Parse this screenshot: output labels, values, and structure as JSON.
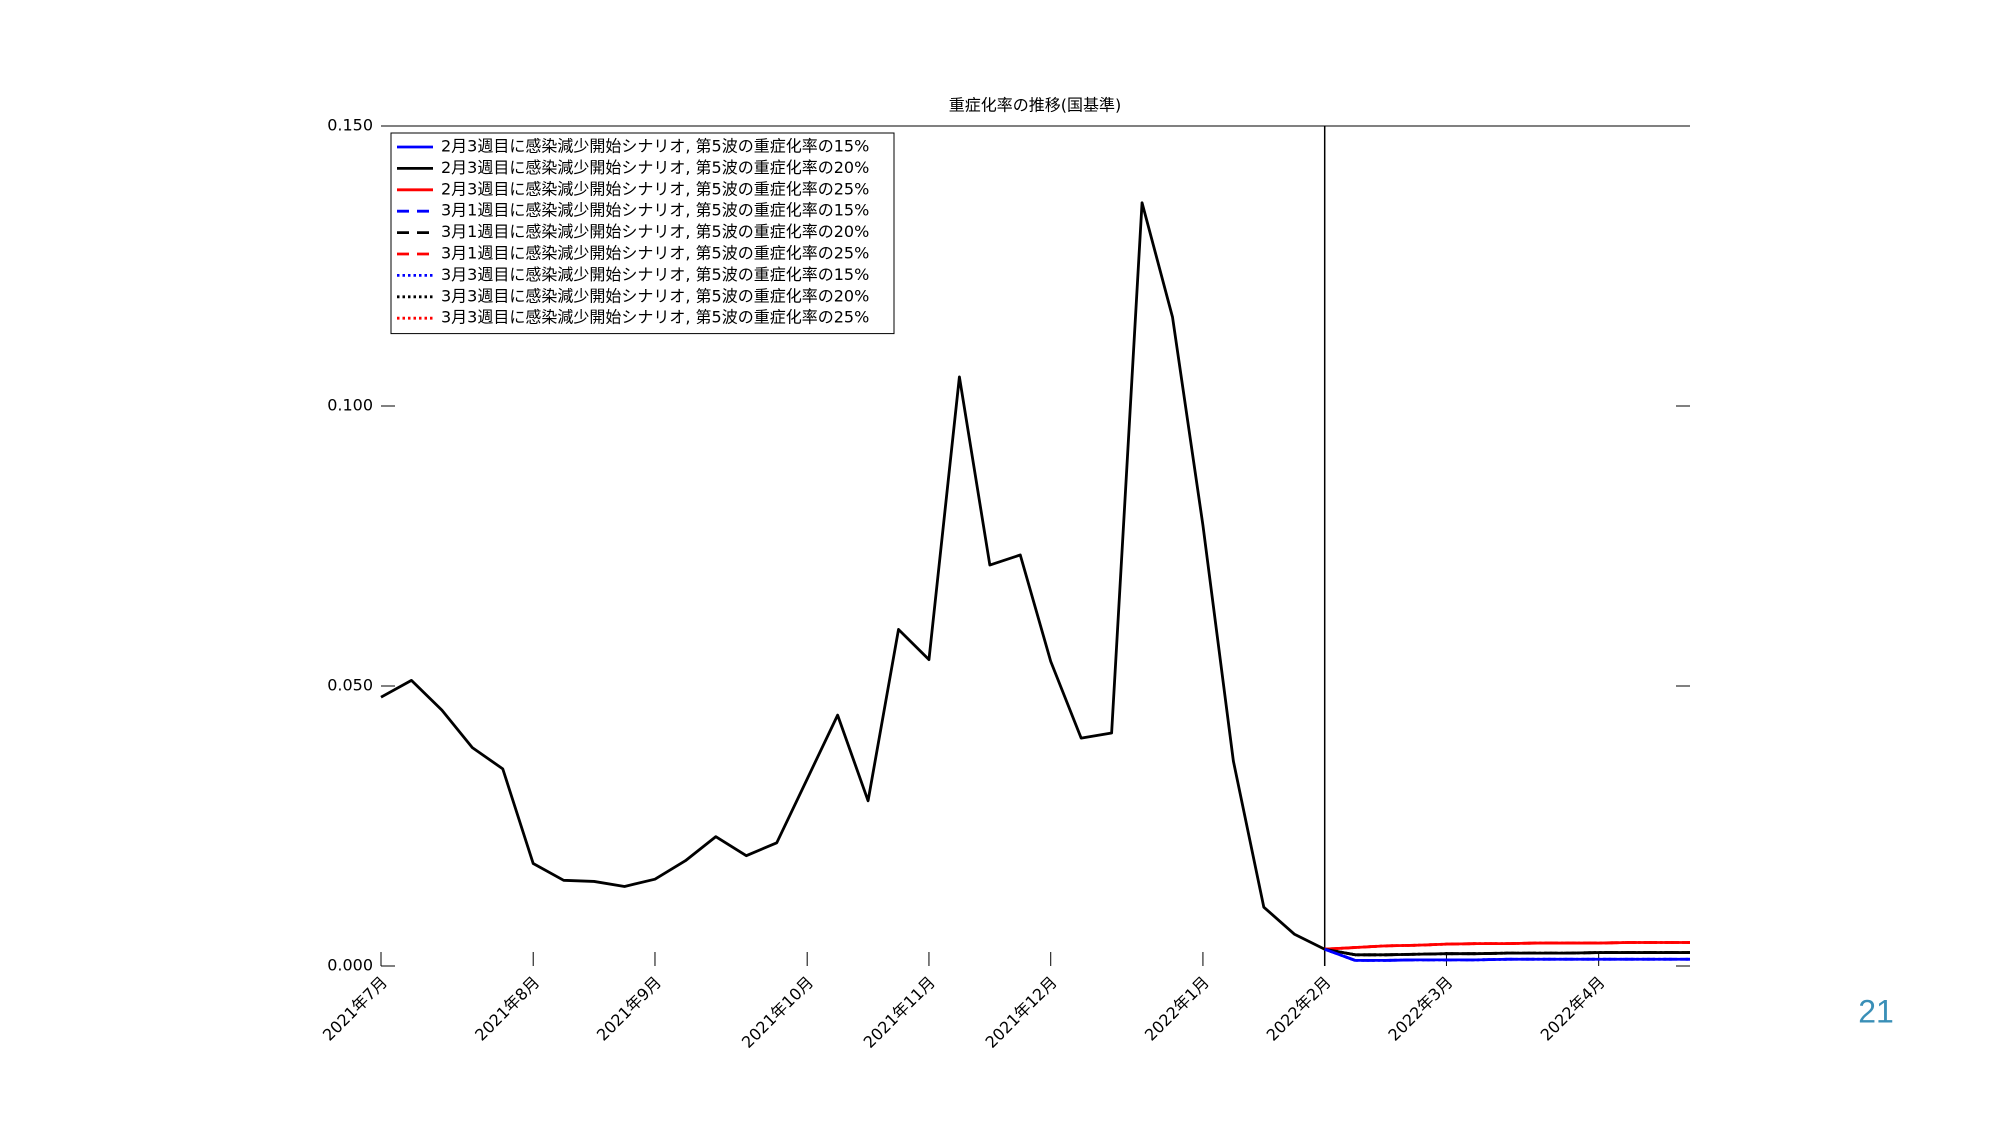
{
  "page_number": "21",
  "chart_data": {
    "type": "line",
    "title": "重症化率の推移(国基準)",
    "x": [
      0,
      1,
      2,
      3,
      4,
      5,
      6,
      7,
      8,
      9,
      10,
      11,
      12,
      13,
      14,
      15,
      16,
      17,
      18,
      19,
      20,
      21,
      22,
      23,
      24,
      25,
      26,
      27,
      28,
      29,
      30,
      31,
      32,
      33,
      34,
      35,
      36,
      37,
      38,
      39,
      40,
      41,
      42,
      43
    ],
    "xlim": [
      0,
      43
    ],
    "xticks": [
      {
        "value": 0,
        "label": "2021年7月"
      },
      {
        "value": 5,
        "label": "2021年8月"
      },
      {
        "value": 9,
        "label": "2021年9月"
      },
      {
        "value": 14,
        "label": "2021年10月"
      },
      {
        "value": 18,
        "label": "2021年11月"
      },
      {
        "value": 22,
        "label": "2021年12月"
      },
      {
        "value": 27,
        "label": "2022年1月"
      },
      {
        "value": 31,
        "label": "2022年2月"
      },
      {
        "value": 35,
        "label": "2022年3月"
      },
      {
        "value": 40,
        "label": "2022年4月"
      }
    ],
    "ylim": [
      0,
      0.15
    ],
    "yticks": [
      {
        "value": 0,
        "label": "0.000"
      },
      {
        "value": 0.05,
        "label": "0.050"
      },
      {
        "value": 0.1,
        "label": "0.100"
      },
      {
        "value": 0.15,
        "label": "0.150"
      }
    ],
    "vline": 31,
    "legend": "upper left",
    "series": [
      {
        "color": "#000000",
        "linestyle": "solid",
        "values": [
          0.048,
          0.051,
          0.0457,
          0.039,
          0.0352,
          0.0183,
          0.0153,
          0.0151,
          0.0142,
          0.0155,
          0.0188,
          0.0231,
          0.0197,
          0.022,
          0.0334,
          0.0448,
          0.0295,
          0.0601,
          0.0547,
          0.1052,
          0.0716,
          0.0734,
          0.0544,
          0.0407,
          0.0416,
          0.1363,
          0.1159,
          0.0787,
          0.0366,
          0.0105,
          0.0057,
          0.003,
          null,
          null,
          null,
          null,
          null,
          null,
          null,
          null,
          null,
          null,
          null,
          null
        ]
      },
      {
        "name": "3月3週目に感染減少開始シナリオ, 第5波の重症化率の25%",
        "color": "#ff0000",
        "linestyle": "dotted",
        "values": [
          null,
          null,
          null,
          null,
          null,
          null,
          null,
          null,
          null,
          null,
          null,
          null,
          null,
          null,
          null,
          null,
          null,
          null,
          null,
          null,
          null,
          null,
          null,
          null,
          null,
          null,
          null,
          null,
          null,
          null,
          null,
          0.003,
          0.0033,
          0.0036,
          0.0037,
          0.0039,
          0.004,
          0.004,
          0.0041,
          0.0041,
          0.0041,
          0.0042,
          0.0042,
          0.0042
        ]
      },
      {
        "name": "3月3週目に感染減少開始シナリオ, 第5波の重症化率の20%",
        "color": "#000000",
        "linestyle": "dotted",
        "values": [
          null,
          null,
          null,
          null,
          null,
          null,
          null,
          null,
          null,
          null,
          null,
          null,
          null,
          null,
          null,
          null,
          null,
          null,
          null,
          null,
          null,
          null,
          null,
          null,
          null,
          null,
          null,
          null,
          null,
          null,
          null,
          0.003,
          0.002,
          0.002,
          0.0021,
          0.0022,
          0.0022,
          0.0023,
          0.0023,
          0.0023,
          0.0024,
          0.0024,
          0.0024,
          0.0024
        ]
      },
      {
        "name": "3月3週目に感染減少開始シナリオ, 第5波の重症化率の15%",
        "color": "#0000ff",
        "linestyle": "dotted",
        "values": [
          null,
          null,
          null,
          null,
          null,
          null,
          null,
          null,
          null,
          null,
          null,
          null,
          null,
          null,
          null,
          null,
          null,
          null,
          null,
          null,
          null,
          null,
          null,
          null,
          null,
          null,
          null,
          null,
          null,
          null,
          null,
          0.003,
          0.001,
          0.001,
          0.0011,
          0.0011,
          0.0011,
          0.0012,
          0.0012,
          0.0012,
          0.0012,
          0.0012,
          0.0012,
          0.0012
        ]
      },
      {
        "name": "3月1週目に感染減少開始シナリオ, 第5波の重症化率の25%",
        "color": "#ff0000",
        "linestyle": "dashed",
        "values": [
          null,
          null,
          null,
          null,
          null,
          null,
          null,
          null,
          null,
          null,
          null,
          null,
          null,
          null,
          null,
          null,
          null,
          null,
          null,
          null,
          null,
          null,
          null,
          null,
          null,
          null,
          null,
          null,
          null,
          null,
          null,
          0.003,
          0.0033,
          0.0036,
          0.0037,
          0.0039,
          0.004,
          0.004,
          0.0041,
          0.0041,
          0.0041,
          0.0042,
          0.0042,
          0.0042
        ]
      },
      {
        "name": "3月1週目に感染減少開始シナリオ, 第5波の重症化率の20%",
        "color": "#000000",
        "linestyle": "dashed",
        "values": [
          null,
          null,
          null,
          null,
          null,
          null,
          null,
          null,
          null,
          null,
          null,
          null,
          null,
          null,
          null,
          null,
          null,
          null,
          null,
          null,
          null,
          null,
          null,
          null,
          null,
          null,
          null,
          null,
          null,
          null,
          null,
          0.003,
          0.002,
          0.002,
          0.0021,
          0.0022,
          0.0022,
          0.0023,
          0.0023,
          0.0023,
          0.0024,
          0.0024,
          0.0024,
          0.0024
        ]
      },
      {
        "name": "3月1週目に感染減少開始シナリオ, 第5波の重症化率の15%",
        "color": "#0000ff",
        "linestyle": "dashed",
        "values": [
          null,
          null,
          null,
          null,
          null,
          null,
          null,
          null,
          null,
          null,
          null,
          null,
          null,
          null,
          null,
          null,
          null,
          null,
          null,
          null,
          null,
          null,
          null,
          null,
          null,
          null,
          null,
          null,
          null,
          null,
          null,
          0.003,
          0.001,
          0.001,
          0.0011,
          0.0011,
          0.0011,
          0.0012,
          0.0012,
          0.0012,
          0.0012,
          0.0012,
          0.0012,
          0.0012
        ]
      },
      {
        "name": "2月3週目に感染減少開始シナリオ, 第5波の重症化率の25%",
        "color": "#ff0000",
        "linestyle": "solid",
        "values": [
          null,
          null,
          null,
          null,
          null,
          null,
          null,
          null,
          null,
          null,
          null,
          null,
          null,
          null,
          null,
          null,
          null,
          null,
          null,
          null,
          null,
          null,
          null,
          null,
          null,
          null,
          null,
          null,
          null,
          null,
          null,
          0.003,
          0.0033,
          0.0036,
          0.0037,
          0.0039,
          0.004,
          0.004,
          0.0041,
          0.0041,
          0.0041,
          0.0042,
          0.0042,
          0.0042
        ]
      },
      {
        "name": "2月3週目に感染減少開始シナリオ, 第5波の重症化率の20%",
        "color": "#000000",
        "linestyle": "solid",
        "values": [
          null,
          null,
          null,
          null,
          null,
          null,
          null,
          null,
          null,
          null,
          null,
          null,
          null,
          null,
          null,
          null,
          null,
          null,
          null,
          null,
          null,
          null,
          null,
          null,
          null,
          null,
          null,
          null,
          null,
          null,
          null,
          0.003,
          0.002,
          0.002,
          0.0021,
          0.0022,
          0.0022,
          0.0023,
          0.0023,
          0.0023,
          0.0024,
          0.0024,
          0.0024,
          0.0024
        ]
      },
      {
        "name": "2月3週目に感染減少開始シナリオ, 第5波の重症化率の15%",
        "color": "#0000ff",
        "linestyle": "solid",
        "values": [
          null,
          null,
          null,
          null,
          null,
          null,
          null,
          null,
          null,
          null,
          null,
          null,
          null,
          null,
          null,
          null,
          null,
          null,
          null,
          null,
          null,
          null,
          null,
          null,
          null,
          null,
          null,
          null,
          null,
          null,
          null,
          0.003,
          0.001,
          0.001,
          0.0011,
          0.0011,
          0.0011,
          0.0012,
          0.0012,
          0.0012,
          0.0012,
          0.0012,
          0.0012,
          0.0012
        ]
      }
    ]
  }
}
